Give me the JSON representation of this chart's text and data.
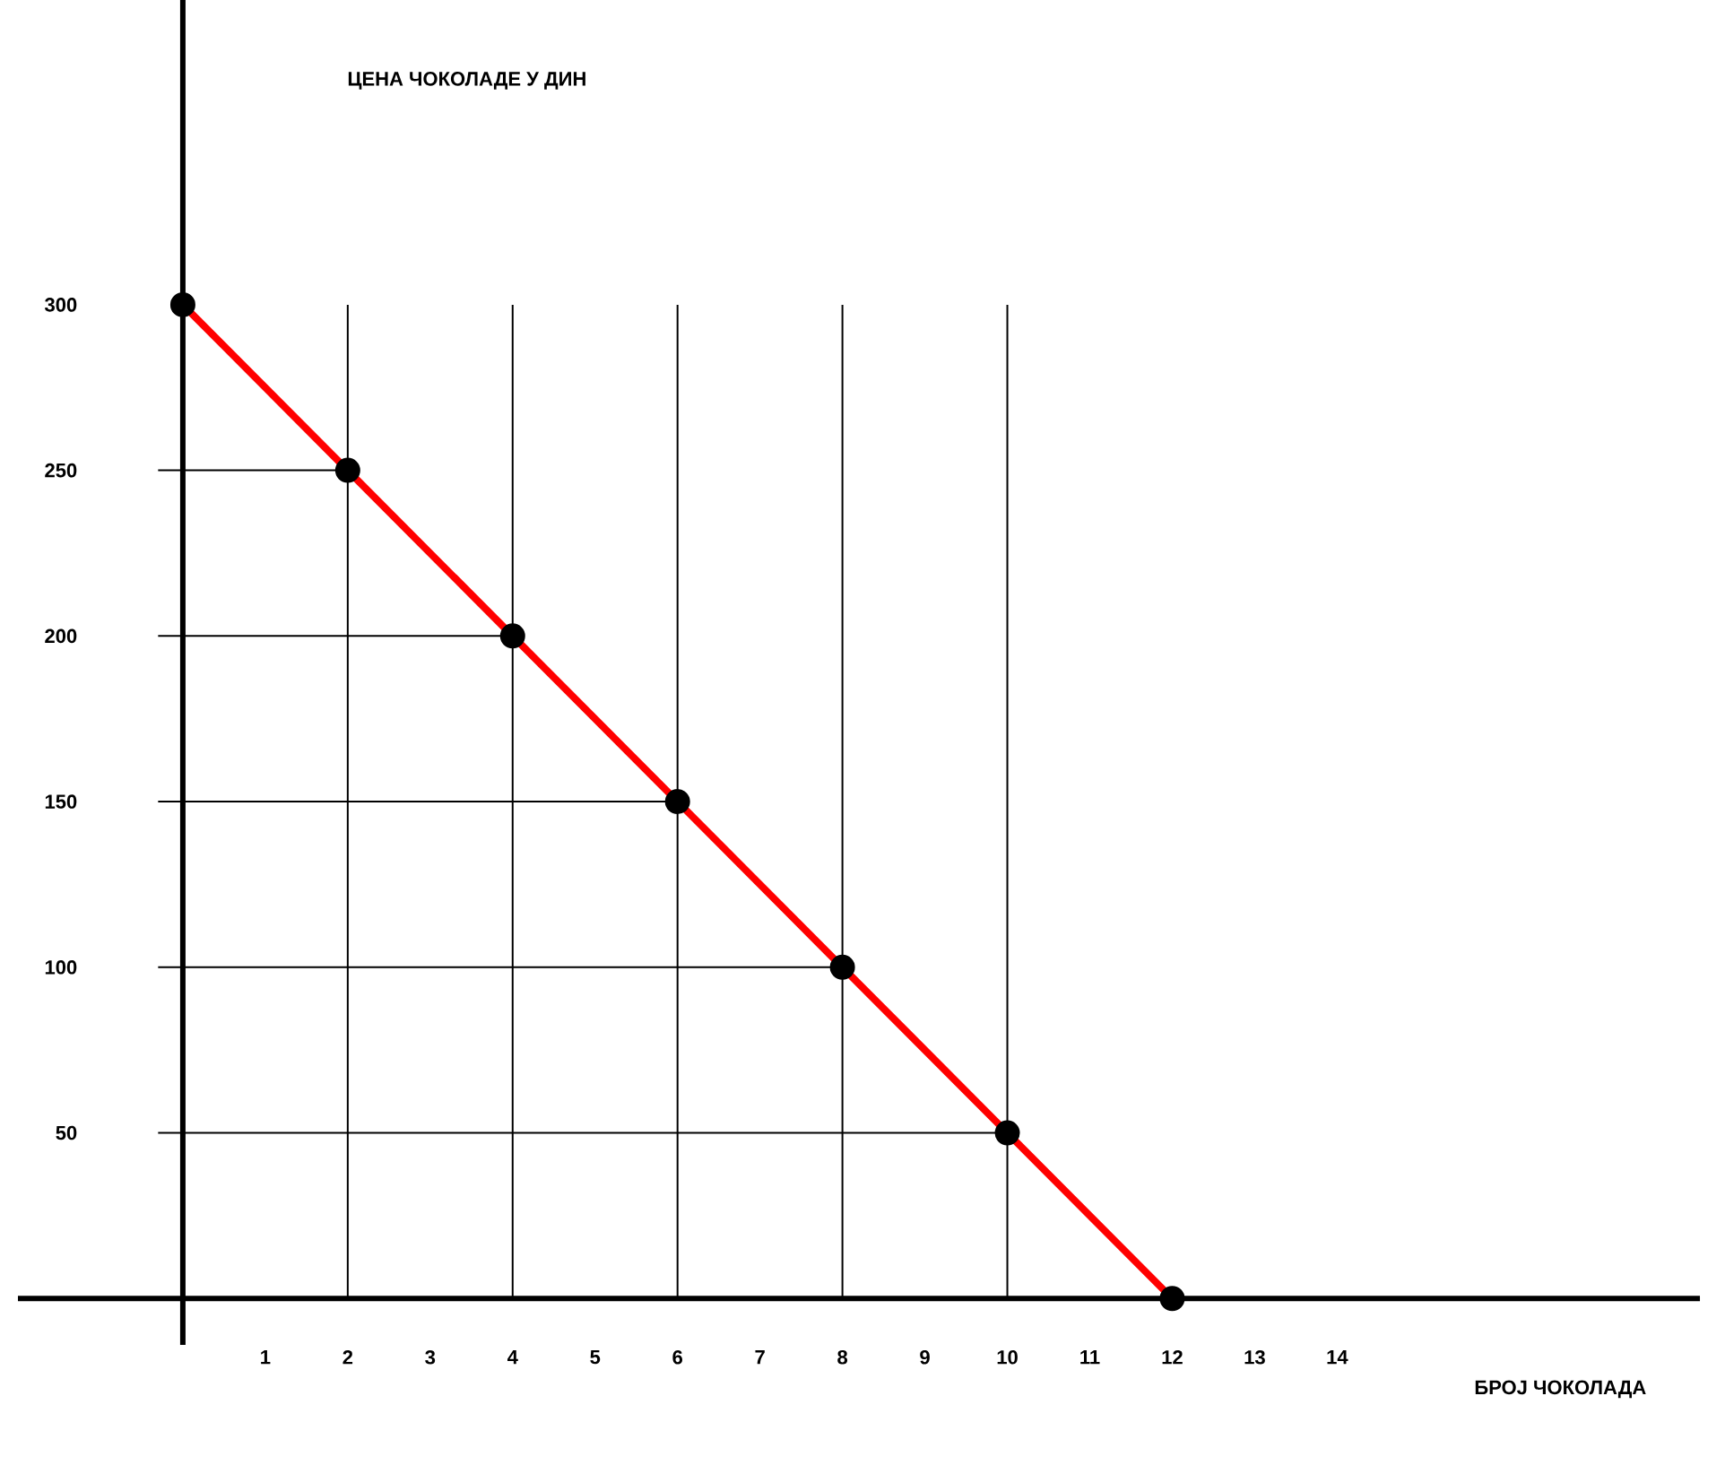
{
  "chart_data": {
    "type": "line",
    "xlabel": "БРОЈ ЧОКОЛАДА",
    "ylabel": "ЦЕНА ЧОКОЛАДЕ У ДИН",
    "x": [
      0,
      2,
      4,
      6,
      8,
      10,
      12
    ],
    "series": [
      {
        "color": "#ff0000",
        "values": [
          300,
          250,
          200,
          150,
          100,
          50,
          0
        ]
      }
    ],
    "marker": "circle",
    "line_style": "solid",
    "ref_lines": [
      {
        "axis": "x",
        "value": 2
      },
      {
        "axis": "x",
        "value": 4
      },
      {
        "axis": "x",
        "value": 6
      },
      {
        "axis": "x",
        "value": 8
      },
      {
        "axis": "x",
        "value": 10
      },
      {
        "axis": "y",
        "value": 250
      },
      {
        "axis": "y",
        "value": 200
      },
      {
        "axis": "y",
        "value": 150
      },
      {
        "axis": "y",
        "value": 100
      },
      {
        "axis": "y",
        "value": 50
      }
    ],
    "xlim": [
      -2,
      18.4
    ],
    "ylim": [
      -14,
      392
    ],
    "xticks": [
      1,
      2,
      3,
      4,
      5,
      6,
      7,
      8,
      9,
      10,
      11,
      12,
      13,
      14
    ],
    "yticks": [
      50,
      100,
      150,
      200,
      250,
      300
    ]
  }
}
